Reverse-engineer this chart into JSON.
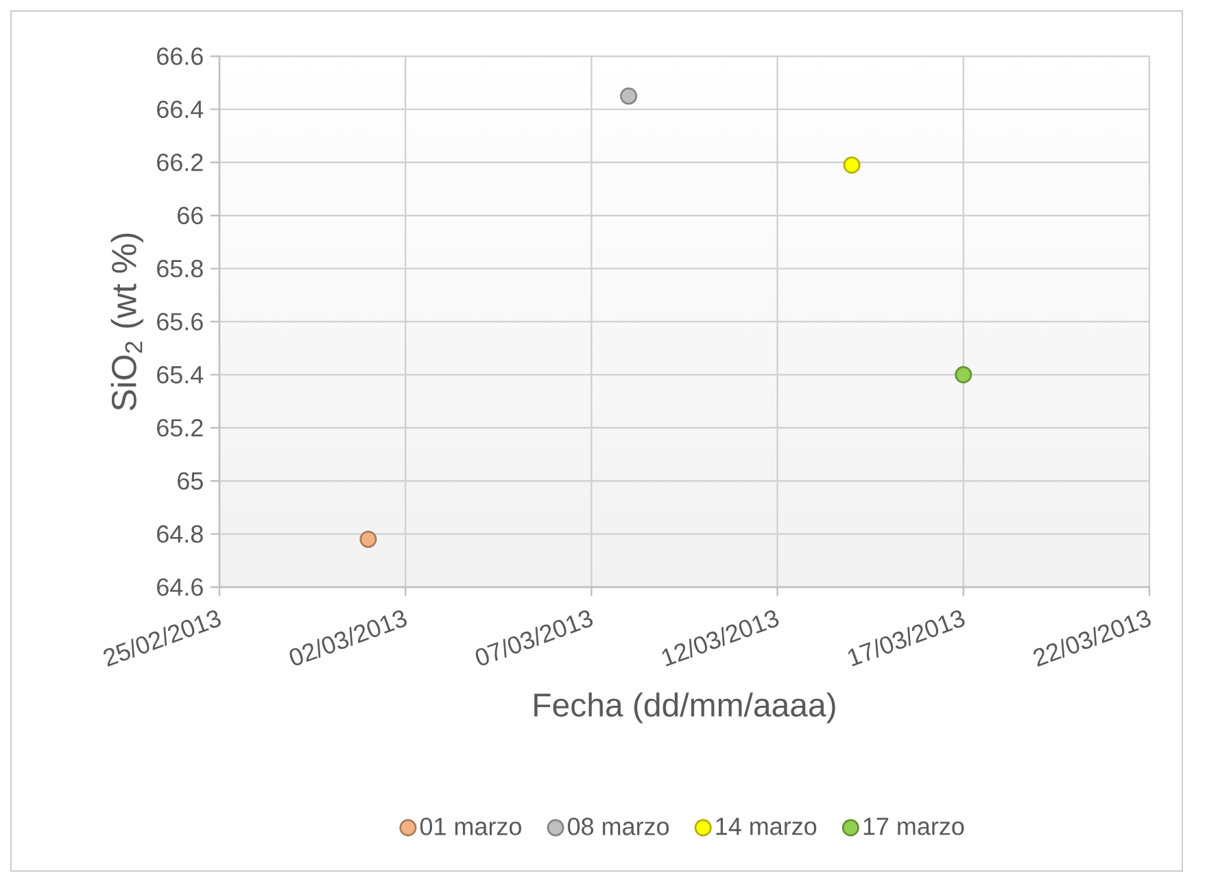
{
  "chart_data": {
    "type": "scatter",
    "xlabel": "Fecha (dd/mm/aaaa)",
    "ylabel": "SiO$_{2}$ (wt %)",
    "series": [
      {
        "name": "01 marzo",
        "color": "#f4b183",
        "x": [
          "2013-03-01"
        ],
        "values": [
          64.78
        ]
      },
      {
        "name": "08 marzo",
        "color": "#bfbfbf",
        "x": [
          "2013-03-08"
        ],
        "values": [
          66.45
        ]
      },
      {
        "name": "14 marzo",
        "color": "#ffff00",
        "x": [
          "2013-03-14"
        ],
        "values": [
          66.19
        ]
      },
      {
        "name": "17 marzo",
        "color": "#92d050",
        "x": [
          "2013-03-17"
        ],
        "values": [
          65.4
        ]
      }
    ],
    "xlim": [
      "2013-02-25",
      "2013-03-22"
    ],
    "xticks": [
      {
        "value": "2013-02-25",
        "label": "25/02/2013"
      },
      {
        "value": "2013-03-02",
        "label": "02/03/2013"
      },
      {
        "value": "2013-03-07",
        "label": "07/03/2013"
      },
      {
        "value": "2013-03-12",
        "label": "12/03/2013"
      },
      {
        "value": "2013-03-17",
        "label": "17/03/2013"
      },
      {
        "value": "2013-03-22",
        "label": "22/03/2013"
      }
    ],
    "ylim": [
      64.6,
      66.6
    ],
    "yticks": [
      64.6,
      64.8,
      65,
      65.2,
      65.4,
      65.6,
      65.8,
      66,
      66.2,
      66.4,
      66.6
    ],
    "grid": true,
    "legend": "bottom",
    "marker": "circle"
  }
}
